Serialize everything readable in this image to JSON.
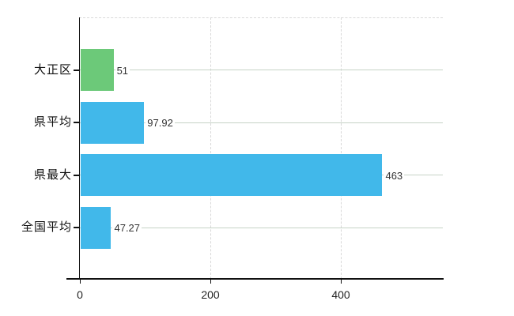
{
  "chart_data": {
    "type": "bar",
    "orientation": "horizontal",
    "title": "",
    "xlabel": "",
    "ylabel": "",
    "categories": [
      "大正区",
      "県平均",
      "県最大",
      "全国平均"
    ],
    "series": [
      {
        "name": "",
        "values": [
          51,
          97.92,
          463,
          47.27
        ],
        "value_labels": [
          "51",
          "97.92",
          "463",
          "47.27"
        ],
        "bar_colors": [
          "#6cc979",
          "#41b8ea",
          "#41b8ea",
          "#41b8ea"
        ]
      }
    ],
    "xlim": [
      0,
      555
    ],
    "x_ticks": [
      0,
      200,
      400
    ],
    "x_tick_labels": [
      "0",
      "200",
      "400"
    ],
    "grid": "on",
    "legend_position": "none",
    "colors": {
      "highlight_bar": "#6cc979",
      "default_bar": "#41b8ea",
      "horizontal_gridline": "#c7d3c7",
      "vertical_gridline": "#d8d8d8",
      "axis": "#111111",
      "tick_text": "#222222",
      "value_text": "#333333",
      "background": "#ffffff"
    }
  }
}
